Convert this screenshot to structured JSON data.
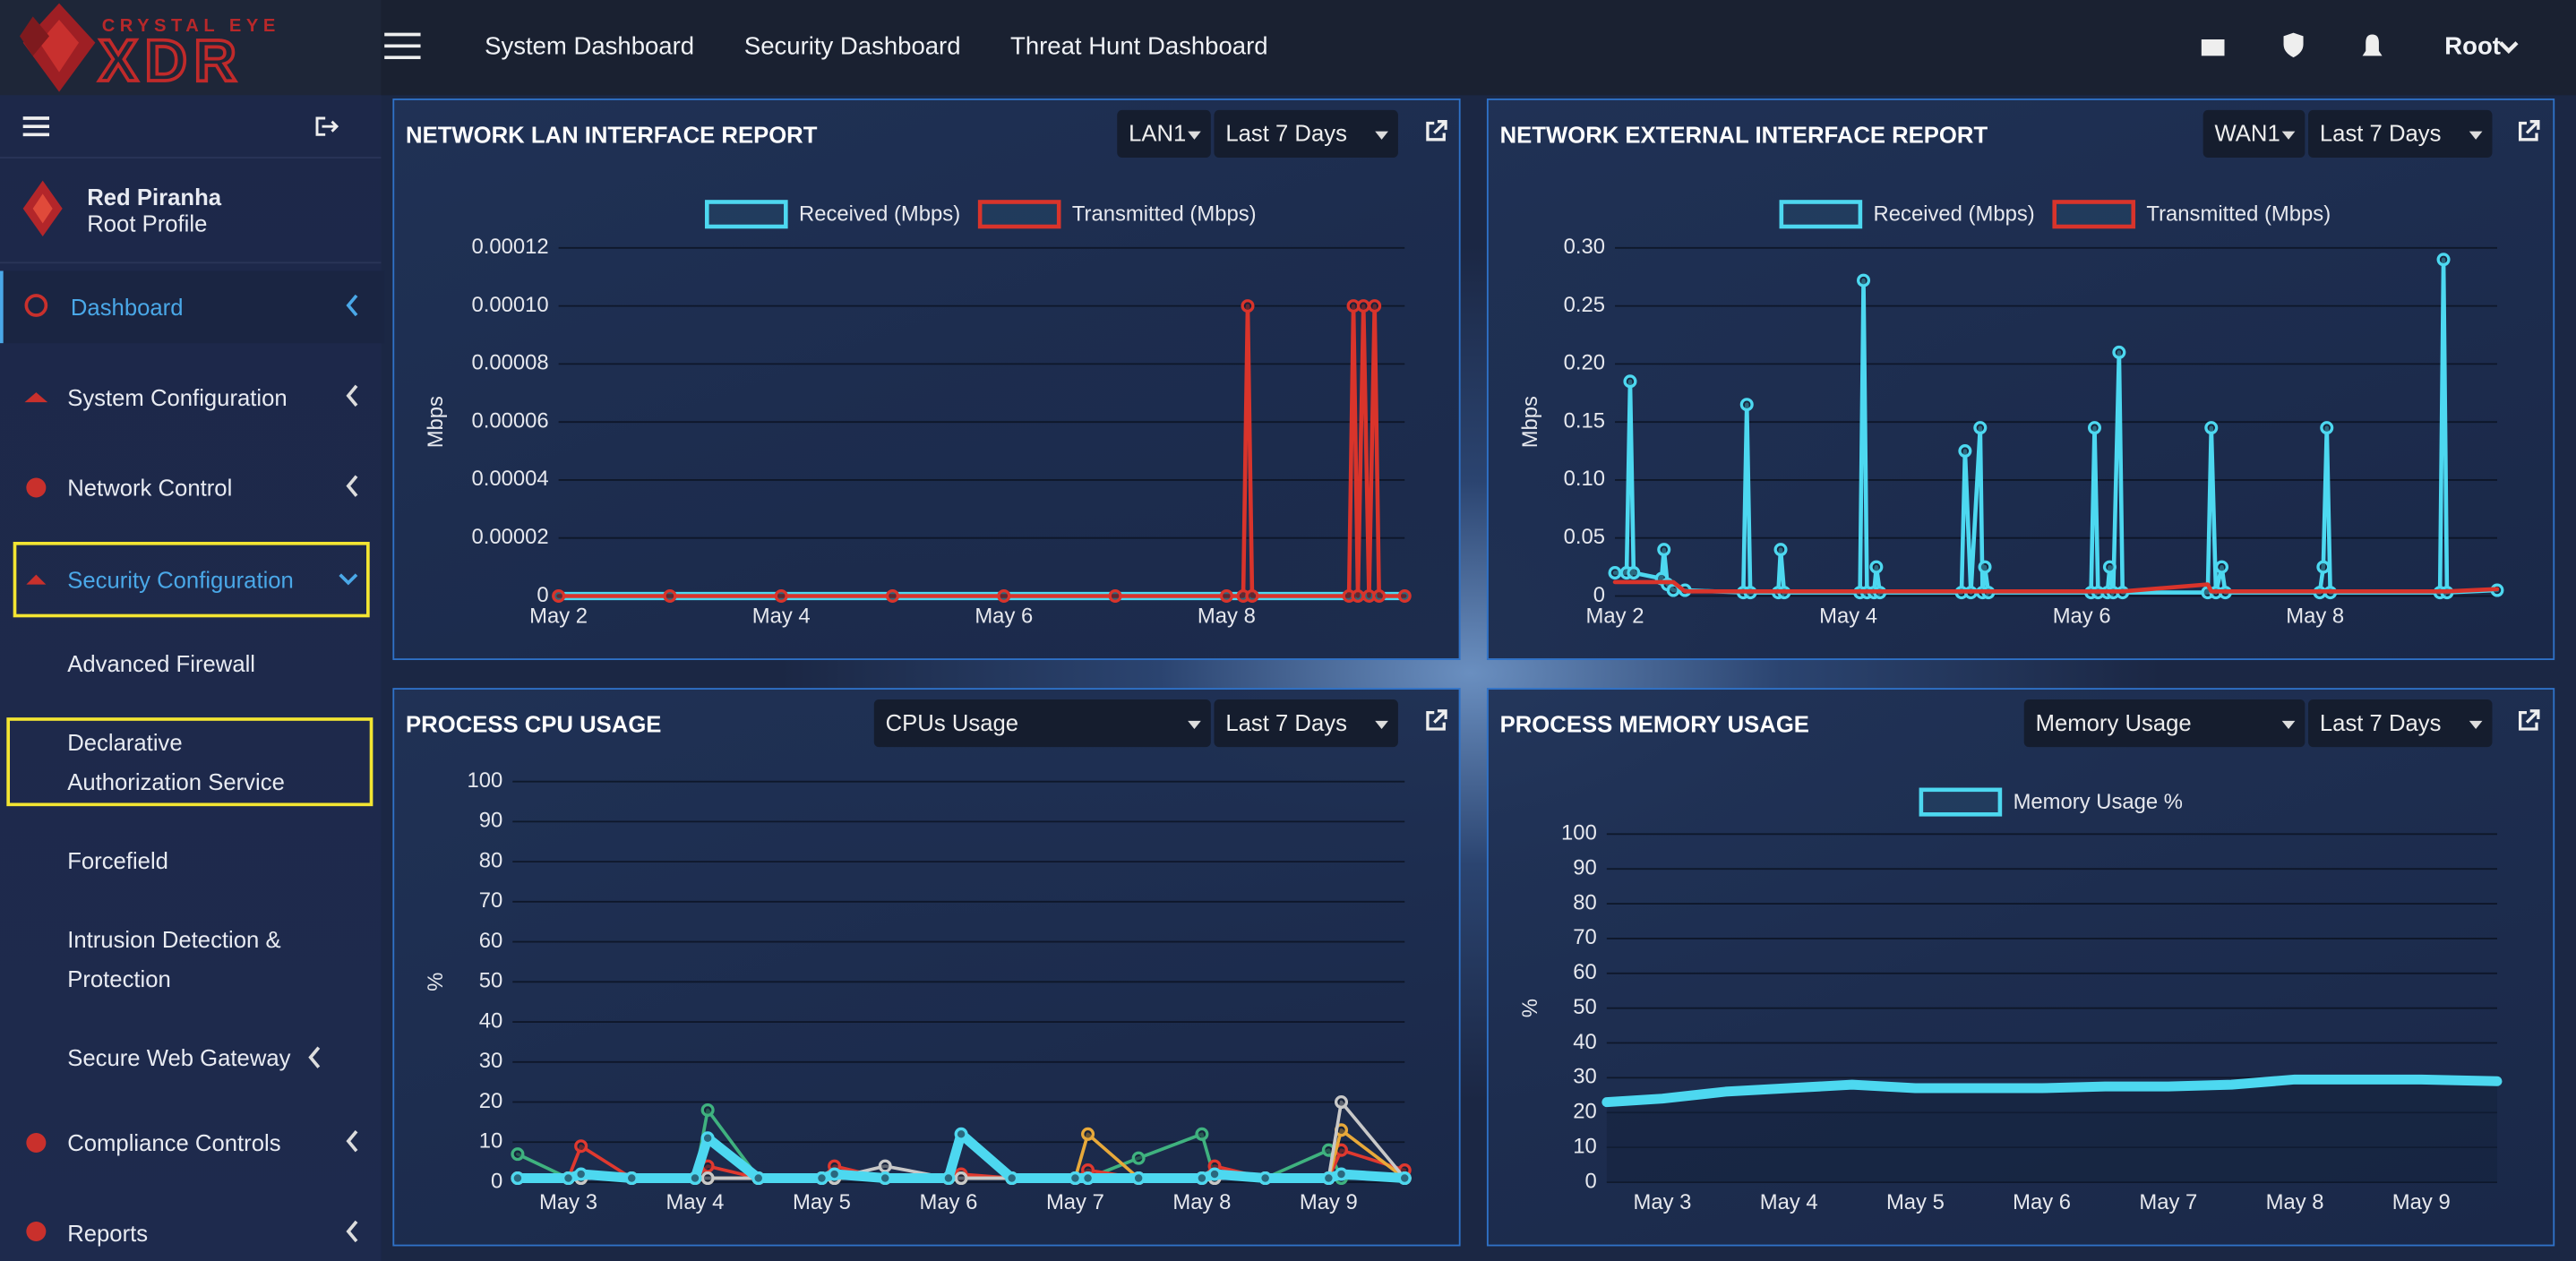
{
  "header": {
    "brand": "CRYSTAL EYE",
    "product": "XDR",
    "nav": [
      "System Dashboard",
      "Security Dashboard",
      "Threat Hunt Dashboard"
    ],
    "user": "Root"
  },
  "sidebar": {
    "profile": {
      "name": "Red Piranha",
      "role": "Root Profile"
    },
    "menu": [
      {
        "label": "Dashboard"
      },
      {
        "label": "System Configuration"
      },
      {
        "label": "Network Control"
      },
      {
        "label": "Security Configuration",
        "children": [
          "Advanced Firewall",
          "Declarative Authorization Service",
          "Forcefield",
          "Intrusion Detection & Protection",
          "Secure Web Gateway"
        ]
      },
      {
        "label": "Compliance Controls"
      },
      {
        "label": "Reports"
      }
    ]
  },
  "panels": [
    {
      "title": "NETWORK LAN INTERFACE REPORT",
      "controls": [
        "LAN1",
        "Last 7 Days"
      ],
      "chart": {
        "type": "line",
        "y_label": "Mbps",
        "grid": true,
        "x": [
          2,
          3,
          4,
          5,
          6,
          7,
          8,
          8.15,
          8.19,
          8.23,
          9.1,
          9.14,
          9.18,
          9.23,
          9.28,
          9.33,
          9.37,
          9.6
        ],
        "xlim": [
          2,
          9.6
        ],
        "xticks": [
          {
            "value": 2,
            "label": "May 2"
          },
          {
            "value": 4,
            "label": "May 4"
          },
          {
            "value": 6,
            "label": "May 6"
          },
          {
            "value": 8,
            "label": "May 8"
          }
        ],
        "ylim": [
          0,
          0.00012
        ],
        "yticks": [
          0,
          2e-05,
          4e-05,
          6e-05,
          8e-05,
          {
            "value": 0.0001,
            "label": "0.00010"
          },
          0.00012
        ],
        "series": [
          {
            "name": "Received (Mbps)",
            "color": "#4dd8f0",
            "markers": false,
            "values": [
              0,
              0,
              0,
              0,
              0,
              0,
              0,
              0,
              0,
              0,
              0,
              0,
              0,
              0,
              0,
              0,
              0,
              0
            ]
          },
          {
            "name": "Transmitted (Mbps)",
            "color": "#d9342b",
            "markers": true,
            "values": [
              0,
              0,
              0,
              0,
              0,
              0,
              0,
              0,
              0.0001,
              0,
              0,
              0.0001,
              0,
              0.0001,
              0,
              0.0001,
              0,
              0
            ]
          }
        ]
      }
    },
    {
      "title": "NETWORK EXTERNAL INTERFACE REPORT",
      "controls": [
        "WAN1",
        "Last 7 Days"
      ],
      "chart": {
        "type": "line",
        "y_label": "Mbps",
        "grid": true,
        "x": [
          2,
          2.1,
          2.13,
          2.16,
          2.4,
          2.42,
          2.45,
          2.5,
          2.6,
          3.1,
          3.13,
          3.16,
          3.4,
          3.42,
          3.45,
          4.1,
          4.13,
          4.16,
          4.22,
          4.24,
          4.27,
          4.97,
          5.0,
          5.05,
          5.13,
          5.15,
          5.17,
          5.2,
          6.08,
          6.11,
          6.14,
          6.22,
          6.24,
          6.27,
          6.32,
          6.35,
          7.08,
          7.11,
          7.15,
          7.2,
          7.23,
          8.04,
          8.07,
          8.1,
          8.13,
          9.07,
          9.1,
          9.13,
          9.56
        ],
        "xlim": [
          2,
          9.56
        ],
        "xticks": [
          {
            "value": 2,
            "label": "May 2"
          },
          {
            "value": 4,
            "label": "May 4"
          },
          {
            "value": 6,
            "label": "May 6"
          },
          {
            "value": 8,
            "label": "May 8"
          }
        ],
        "ylim": [
          0,
          0.3
        ],
        "yticks": [
          0,
          0.05,
          {
            "value": 0.1,
            "label": "0.10"
          },
          0.15,
          {
            "value": 0.2,
            "label": "0.20"
          },
          0.25,
          {
            "value": 0.3,
            "label": "0.30"
          }
        ],
        "series": [
          {
            "name": "Received (Mbps)",
            "color": "#4dd8f0",
            "markers": true,
            "values": [
              0.02,
              0.02,
              0.185,
              0.02,
              0.015,
              0.04,
              0.01,
              0.005,
              0.005,
              0.003,
              0.165,
              0.003,
              0.003,
              0.04,
              0.003,
              0.003,
              0.272,
              0.003,
              0.003,
              0.025,
              0.003,
              0.003,
              0.125,
              0.003,
              0.145,
              0.003,
              0.025,
              0.003,
              0.003,
              0.145,
              0.003,
              0.003,
              0.025,
              0.003,
              0.21,
              0.003,
              0.003,
              0.145,
              0.003,
              0.025,
              0.003,
              0.003,
              0.025,
              0.145,
              0.003,
              0.003,
              0.29,
              0.003,
              0.005
            ]
          },
          {
            "name": "Transmitted (Mbps)",
            "color": "#d9342b",
            "markers": false,
            "values": [
              0.012,
              0.012,
              0.012,
              0.012,
              0.012,
              0.012,
              0.012,
              0.012,
              0.004,
              0.004,
              0.004,
              0.004,
              0.004,
              0.004,
              0.004,
              0.004,
              0.004,
              0.004,
              0.004,
              0.004,
              0.004,
              0.004,
              0.004,
              0.004,
              0.004,
              0.004,
              0.004,
              0.004,
              0.004,
              0.004,
              0.004,
              0.004,
              0.004,
              0.004,
              0.004,
              0.004,
              0.01,
              0.004,
              0.004,
              0.004,
              0.004,
              0.004,
              0.004,
              0.004,
              0.004,
              0.004,
              0.004,
              0.004,
              0.006
            ]
          }
        ]
      }
    },
    {
      "title": "PROCESS CPU USAGE",
      "controls": [
        "CPUs Usage",
        "Last 7 Days"
      ],
      "chart": {
        "type": "line",
        "y_label": "%",
        "grid": true,
        "x": [
          2.6,
          3.0,
          3.1,
          3.5,
          4.0,
          4.1,
          4.5,
          5.0,
          5.1,
          5.5,
          6.0,
          6.1,
          6.5,
          7.0,
          7.1,
          7.5,
          8.0,
          8.1,
          8.5,
          9.0,
          9.1,
          9.6
        ],
        "xlim": [
          2.56,
          9.6
        ],
        "xticks": [
          {
            "value": 3,
            "label": "May 3"
          },
          {
            "value": 4,
            "label": "May 4"
          },
          {
            "value": 5,
            "label": "May 5"
          },
          {
            "value": 6,
            "label": "May 6"
          },
          {
            "value": 7,
            "label": "May 7"
          },
          {
            "value": 8,
            "label": "May 8"
          },
          {
            "value": 9,
            "label": "May 9"
          }
        ],
        "ylim": [
          0,
          100
        ],
        "yticks": [
          0,
          10,
          20,
          30,
          40,
          50,
          60,
          70,
          80,
          90,
          100
        ],
        "series": [
          {
            "color": "#3fb27f",
            "markers": true,
            "values": [
              7,
              1,
              1,
              1,
              1,
              18,
              1,
              1,
              1,
              1,
              1,
              1,
              1,
              1,
              1,
              6,
              12,
              1,
              1,
              8,
              1,
              1
            ]
          },
          {
            "color": "#e0392f",
            "markers": true,
            "values": [
              1,
              1,
              9,
              1,
              1,
              4,
              1,
              1,
              4,
              1,
              1,
              2,
              1,
              1,
              3,
              1,
              1,
              4,
              1,
              1,
              8,
              3
            ]
          },
          {
            "color": "#e8a93a",
            "markers": true,
            "values": [
              1,
              1,
              1,
              1,
              1,
              1,
              1,
              1,
              1,
              1,
              1,
              1,
              1,
              1,
              12,
              1,
              1,
              1,
              1,
              1,
              13,
              1
            ]
          },
          {
            "color": "#c8c8c8",
            "markers": true,
            "values": [
              1,
              1,
              1,
              1,
              1,
              1,
              1,
              1,
              1,
              4,
              1,
              1,
              1,
              1,
              1,
              1,
              1,
              1,
              1,
              1,
              20,
              1
            ]
          },
          {
            "color": "#4dd8f0",
            "markers": true,
            "values": [
              1,
              1,
              2,
              1,
              1,
              11,
              1,
              1,
              2,
              1,
              1,
              12,
              1,
              1,
              1,
              1,
              1,
              2,
              1,
              1,
              2,
              1
            ]
          }
        ]
      }
    },
    {
      "title": "PROCESS MEMORY USAGE",
      "controls": [
        "Memory Usage",
        "Last 7 Days"
      ],
      "chart": {
        "type": "area",
        "y_label": "%",
        "grid": true,
        "x": [
          2.56,
          3,
          3.5,
          4,
          4.5,
          5,
          5.5,
          6,
          6.5,
          7,
          7.5,
          8,
          8.5,
          9,
          9.6
        ],
        "xlim": [
          2.56,
          9.6
        ],
        "xticks": [
          {
            "value": 3,
            "label": "May 3"
          },
          {
            "value": 4,
            "label": "May 4"
          },
          {
            "value": 5,
            "label": "May 5"
          },
          {
            "value": 6,
            "label": "May 6"
          },
          {
            "value": 7,
            "label": "May 7"
          },
          {
            "value": 8,
            "label": "May 8"
          },
          {
            "value": 9,
            "label": "May 9"
          }
        ],
        "ylim": [
          0,
          100
        ],
        "yticks": [
          0,
          10,
          20,
          30,
          40,
          50,
          60,
          70,
          80,
          90,
          100
        ],
        "series": [
          {
            "name": "Memory Usage %",
            "color": "#4dd8f0",
            "markers": false,
            "values": [
              23,
              24,
              26,
              27,
              28,
              27,
              27,
              27,
              27.5,
              27.5,
              28,
              29.5,
              29.5,
              29.5,
              29
            ]
          }
        ]
      }
    }
  ]
}
